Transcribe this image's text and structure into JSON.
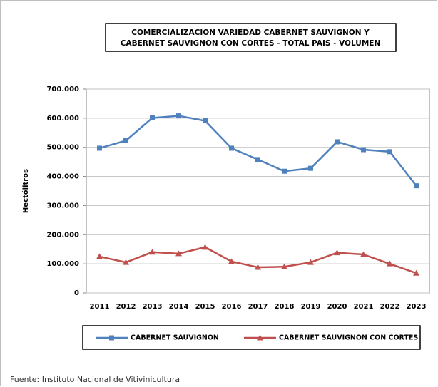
{
  "chart_data": {
    "type": "line",
    "title": [
      "COMERCIALIZACION VARIEDAD CABERNET SAUVIGNON  Y",
      "CABERNET SAUVIGNON CON CORTES - TOTAL PAIS - VOLUMEN"
    ],
    "y_label": "Hectólitros",
    "categories": [
      "2011",
      "2012",
      "2013",
      "2014",
      "2015",
      "2016",
      "2017",
      "2018",
      "2019",
      "2020",
      "2021",
      "2022",
      "2023"
    ],
    "series": [
      {
        "name": "CABERNET SAUVIGNON",
        "color": "#4f81bd",
        "marker": "square",
        "values": [
          497000,
          523000,
          601000,
          608000,
          591000,
          497000,
          458000,
          418000,
          428000,
          519000,
          492000,
          485000,
          368000
        ]
      },
      {
        "name": "CABERNET SAUVIGNON CON CORTES",
        "color": "#c0504d",
        "marker": "triangle",
        "values": [
          125000,
          105000,
          140000,
          135000,
          157000,
          108000,
          88000,
          90000,
          105000,
          138000,
          132000,
          100000,
          68000
        ]
      }
    ],
    "ylim": [
      0,
      700000
    ],
    "yticks": [
      0,
      {
        "value": 100000,
        "label": "100.000"
      },
      {
        "value": 200000,
        "label": "200.000"
      },
      {
        "value": 300000,
        "label": "300.000"
      },
      {
        "value": 400000,
        "label": "400.000"
      },
      {
        "value": 500000,
        "label": "500.000"
      },
      {
        "value": 600000,
        "label": "600.000"
      },
      {
        "value": 700000,
        "label": "700.000"
      }
    ],
    "grid": true,
    "legend": "bottom",
    "source": "Fuente: Instituto Nacional de Vitivinicultura"
  }
}
